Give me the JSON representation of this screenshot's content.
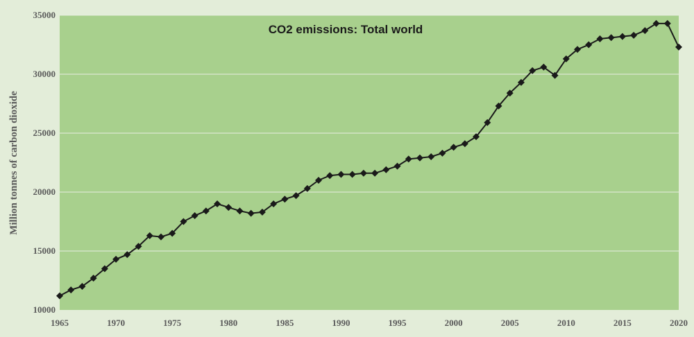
{
  "chart_data": {
    "type": "line",
    "title": "CO2 emissions: Total world",
    "xlabel": "",
    "ylabel": "Million tonnes of carbon dioxide",
    "xlim": [
      1965,
      2020
    ],
    "ylim": [
      10000,
      35000
    ],
    "x_ticks": [
      1965,
      1970,
      1975,
      1980,
      1985,
      1990,
      1995,
      2000,
      2005,
      2010,
      2015,
      2020
    ],
    "y_ticks": [
      10000,
      15000,
      20000,
      25000,
      30000,
      35000
    ],
    "grid": true,
    "marker": "diamond",
    "colors": {
      "plot_bg": "#a8d08d",
      "page_bg": "#e3edd9",
      "line": "#1a1a1a",
      "grid": "#e8eee2"
    },
    "series": [
      {
        "name": "CO2 emissions: Total world",
        "x": [
          1965,
          1966,
          1967,
          1968,
          1969,
          1970,
          1971,
          1972,
          1973,
          1974,
          1975,
          1976,
          1977,
          1978,
          1979,
          1980,
          1981,
          1982,
          1983,
          1984,
          1985,
          1986,
          1987,
          1988,
          1989,
          1990,
          1991,
          1992,
          1993,
          1994,
          1995,
          1996,
          1997,
          1998,
          1999,
          2000,
          2001,
          2002,
          2003,
          2004,
          2005,
          2006,
          2007,
          2008,
          2009,
          2010,
          2011,
          2012,
          2013,
          2014,
          2015,
          2016,
          2017,
          2018,
          2019,
          2020
        ],
        "values": [
          11200,
          11700,
          12000,
          12700,
          13500,
          14300,
          14700,
          15400,
          16300,
          16200,
          16500,
          17500,
          18000,
          18400,
          19000,
          18700,
          18400,
          18200,
          18300,
          19000,
          19400,
          19700,
          20300,
          21000,
          21400,
          21500,
          21500,
          21600,
          21600,
          21900,
          22200,
          22800,
          22900,
          23000,
          23300,
          23800,
          24100,
          24700,
          25900,
          27300,
          28400,
          29300,
          30300,
          30600,
          29900,
          31300,
          32100,
          32500,
          33000,
          33100,
          33200,
          33300,
          33700,
          34300,
          34300,
          32300
        ]
      }
    ]
  }
}
